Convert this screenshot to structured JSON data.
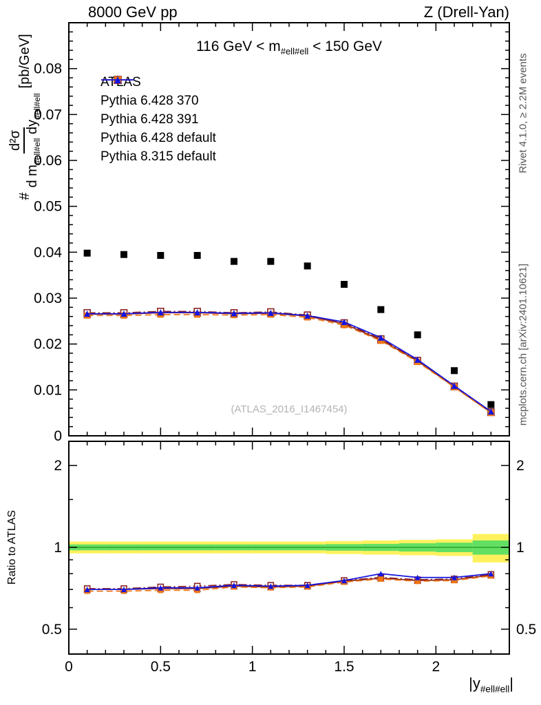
{
  "header": {
    "left": "8000 GeV pp",
    "right": "Z (Drell-Yan)"
  },
  "cut_label": {
    "pre": "116 GeV < m",
    "sub": "#ell#ell",
    "post": " < 150 GeV"
  },
  "watermark": "(ATLAS_2016_I1467454)",
  "side_notes": {
    "top": "Rivet 4.1.0, ≥ 2.2M events",
    "bottom": "mcplots.cern.ch [arXiv:2401.10621]"
  },
  "axis_labels": {
    "y_prefix": "#",
    "y_numerator": "d²σ",
    "y_den_a": "d m",
    "y_den_sub_a": "#ell#ell",
    "y_den_b": " dy",
    "y_den_sub_b": "#ell#ell",
    "y_unit": "[pb/GeV]",
    "x_pre": "|y",
    "x_sub": "#ell#ell",
    "x_post": "|",
    "ratio_y": "Ratio to ATLAS"
  },
  "chart_data": {
    "type": "line",
    "title": "116 GeV < m_#ell#ell < 150 GeV",
    "xlabel": "|y_#ell#ell|",
    "ylabel_main": "# d²σ/(d m_#ell#ell dy_#ell#ell) [pb/GeV]",
    "ylabel_ratio": "Ratio to ATLAS",
    "legend_pos": "upper-left",
    "xlim": [
      0,
      2.4
    ],
    "xticks": [
      0,
      0.5,
      1,
      1.5,
      2
    ],
    "x_minor_step": 0.1,
    "x": [
      0.1,
      0.3,
      0.5,
      0.7,
      0.9,
      1.1,
      1.3,
      1.5,
      1.7,
      1.9,
      2.1,
      2.3
    ],
    "main": {
      "scale": "linear",
      "ylim": [
        0,
        0.09
      ],
      "yticks": [
        0,
        0.01,
        0.02,
        0.03,
        0.04,
        0.05,
        0.06,
        0.07,
        0.08
      ],
      "y_minor_step": 0.002,
      "series": [
        {
          "name": "ATLAS",
          "color": "#000000",
          "marker": "square-filled",
          "line": "none",
          "values": [
            0.0398,
            0.0395,
            0.0393,
            0.0393,
            0.038,
            0.038,
            0.037,
            0.033,
            0.0275,
            0.022,
            0.0142,
            0.0068
          ]
        },
        {
          "name": "Pythia 6.428 370",
          "color": "#8b2323",
          "marker": "triangle-open",
          "line": "solid",
          "values": [
            0.0265,
            0.0265,
            0.0268,
            0.0268,
            0.0266,
            0.0267,
            0.0261,
            0.0244,
            0.0209,
            0.0163,
            0.0107,
            0.0051
          ]
        },
        {
          "name": "Pythia 6.428 391",
          "color": "#8b2323",
          "marker": "square-open",
          "line": "dashdot",
          "values": [
            0.0268,
            0.0268,
            0.0271,
            0.0271,
            0.0268,
            0.027,
            0.0263,
            0.0246,
            0.0211,
            0.0164,
            0.0108,
            0.0052
          ]
        },
        {
          "name": "Pythia 6.428 default",
          "color": "#ee7512",
          "marker": "square-filled",
          "line": "dash",
          "values": [
            0.0262,
            0.0262,
            0.0264,
            0.0264,
            0.0263,
            0.0264,
            0.0258,
            0.0241,
            0.0207,
            0.0161,
            0.0106,
            0.005
          ]
        },
        {
          "name": "Pythia 8.315 default",
          "color": "#1414e0",
          "marker": "triangle-filled",
          "line": "solid",
          "values": [
            0.0266,
            0.0266,
            0.0269,
            0.0269,
            0.0267,
            0.0268,
            0.0262,
            0.0248,
            0.0214,
            0.0166,
            0.0109,
            0.0053
          ]
        }
      ]
    },
    "ratio": {
      "scale": "log",
      "ylim": [
        0.405,
        2.455
      ],
      "yticks": [
        0.5,
        1,
        2
      ],
      "y_minor": [
        0.6,
        0.7,
        0.8,
        0.9,
        1.5
      ],
      "refline": 1,
      "band_colors": {
        "outer": "#fff15e",
        "inner": "#63e063",
        "refline": "#2ca02c"
      },
      "bands": [
        {
          "x0": 0.0,
          "x1": 0.2,
          "outer": [
            0.95,
            1.05
          ],
          "inner": [
            0.975,
            1.025
          ]
        },
        {
          "x0": 0.2,
          "x1": 0.4,
          "outer": [
            0.95,
            1.05
          ],
          "inner": [
            0.975,
            1.025
          ]
        },
        {
          "x0": 0.4,
          "x1": 0.6,
          "outer": [
            0.95,
            1.05
          ],
          "inner": [
            0.975,
            1.025
          ]
        },
        {
          "x0": 0.6,
          "x1": 0.8,
          "outer": [
            0.95,
            1.05
          ],
          "inner": [
            0.975,
            1.025
          ]
        },
        {
          "x0": 0.8,
          "x1": 1.0,
          "outer": [
            0.95,
            1.05
          ],
          "inner": [
            0.975,
            1.025
          ]
        },
        {
          "x0": 1.0,
          "x1": 1.2,
          "outer": [
            0.95,
            1.05
          ],
          "inner": [
            0.975,
            1.025
          ]
        },
        {
          "x0": 1.2,
          "x1": 1.4,
          "outer": [
            0.95,
            1.05
          ],
          "inner": [
            0.975,
            1.025
          ]
        },
        {
          "x0": 1.4,
          "x1": 1.6,
          "outer": [
            0.945,
            1.055
          ],
          "inner": [
            0.972,
            1.028
          ]
        },
        {
          "x0": 1.6,
          "x1": 1.8,
          "outer": [
            0.94,
            1.06
          ],
          "inner": [
            0.97,
            1.03
          ]
        },
        {
          "x0": 1.8,
          "x1": 2.0,
          "outer": [
            0.935,
            1.065
          ],
          "inner": [
            0.965,
            1.035
          ]
        },
        {
          "x0": 2.0,
          "x1": 2.2,
          "outer": [
            0.93,
            1.07
          ],
          "inner": [
            0.96,
            1.04
          ]
        },
        {
          "x0": 2.2,
          "x1": 2.4,
          "outer": [
            0.88,
            1.12
          ],
          "inner": [
            0.94,
            1.06
          ]
        }
      ],
      "series": [
        {
          "name": "Pythia 6.428 370",
          "color": "#8b2323",
          "marker": "triangle-open",
          "line": "solid",
          "values": [
            0.7,
            0.7,
            0.705,
            0.705,
            0.72,
            0.715,
            0.72,
            0.75,
            0.77,
            0.755,
            0.76,
            0.79
          ]
        },
        {
          "name": "Pythia 6.428 391",
          "color": "#8b2323",
          "marker": "square-open",
          "line": "dashdot",
          "values": [
            0.705,
            0.705,
            0.715,
            0.72,
            0.73,
            0.725,
            0.725,
            0.755,
            0.775,
            0.76,
            0.765,
            0.795
          ]
        },
        {
          "name": "Pythia 6.428 default",
          "color": "#ee7512",
          "marker": "square-filled",
          "line": "dash",
          "values": [
            0.69,
            0.69,
            0.695,
            0.695,
            0.715,
            0.71,
            0.715,
            0.745,
            0.765,
            0.75,
            0.755,
            0.785
          ]
        },
        {
          "name": "Pythia 8.315 default",
          "color": "#1414e0",
          "marker": "triangle-filled",
          "line": "solid",
          "values": [
            0.7,
            0.7,
            0.71,
            0.71,
            0.725,
            0.72,
            0.725,
            0.755,
            0.8,
            0.775,
            0.775,
            0.8
          ]
        }
      ]
    }
  }
}
